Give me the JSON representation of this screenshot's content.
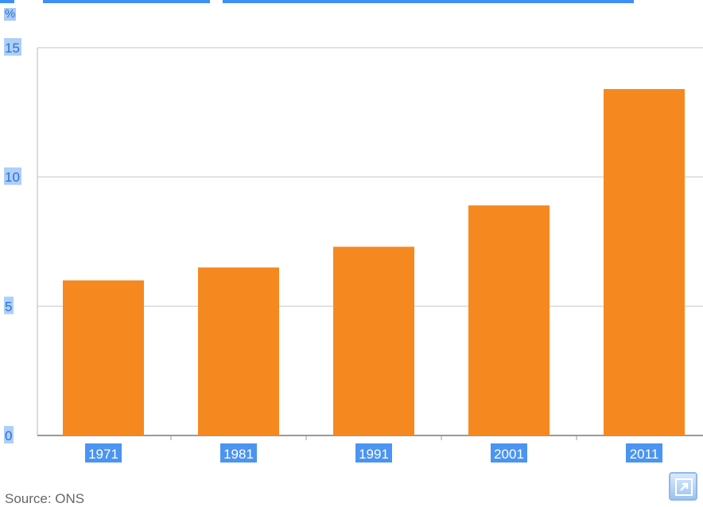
{
  "chart_data": {
    "type": "bar",
    "categories": [
      "1971",
      "1981",
      "1991",
      "2001",
      "2011"
    ],
    "series": [
      {
        "values": [
          6.0,
          6.5,
          7.3,
          8.9,
          13.4
        ]
      }
    ],
    "title": "",
    "xlabel": "",
    "ylabel": "%",
    "ylim": [
      0,
      15
    ],
    "yticks": [
      "0",
      "5",
      "10",
      "15"
    ],
    "grid": true,
    "bar_color": "#f5891f"
  },
  "source_text": "Source: ONS",
  "expand_icon": "expand-icon",
  "colors": {
    "highlight_bg": "#4a94f2",
    "highlight_text": "#2d70cf"
  }
}
